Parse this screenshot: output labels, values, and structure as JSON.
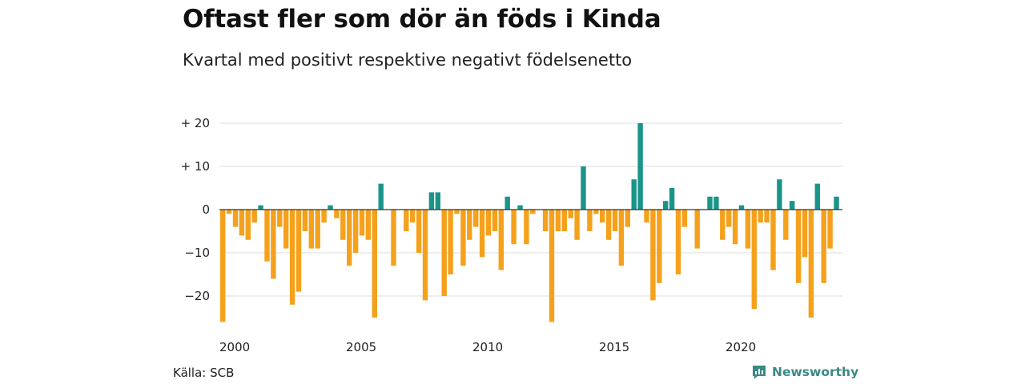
{
  "header": {
    "title": "Oftast fler som dör än föds i Kinda",
    "subtitle": "Kvartal med positivt respektive negativt födelsenetto"
  },
  "footer": {
    "source": "Källa: SCB",
    "brand": "Newsworthy",
    "brand_icon": "newsworthy-logo-icon"
  },
  "colors": {
    "positive": "#1a9589",
    "negative": "#f5a11c",
    "grid": "#dddddd",
    "axis": "#333333"
  },
  "chart_data": {
    "type": "bar",
    "title": "Oftast fler som dör än föds i Kinda",
    "subtitle": "Kvartal med positivt respektive negativt födelsenetto",
    "xlabel": "",
    "ylabel": "",
    "x_start": "2000 Q1",
    "x_tick_labels": [
      "2000",
      "2005",
      "2010",
      "2015",
      "2020"
    ],
    "y_tick_labels": [
      "+ 20",
      "+ 10",
      "0",
      "−10",
      "−20"
    ],
    "y_tick_values": [
      20,
      10,
      0,
      -10,
      -20
    ],
    "ylim": [
      -26,
      20
    ],
    "grid": true,
    "values": [
      -26,
      -1,
      -4,
      -6,
      -7,
      -3,
      1,
      -12,
      -16,
      -4,
      -9,
      -22,
      -19,
      -5,
      -9,
      -9,
      -3,
      1,
      -2,
      -7,
      -13,
      -10,
      -6,
      -7,
      -25,
      6,
      0,
      -13,
      0,
      -5,
      -3,
      -10,
      -21,
      4,
      4,
      -20,
      -15,
      -1,
      -13,
      -7,
      -4,
      -11,
      -6,
      -5,
      -14,
      3,
      -8,
      1,
      -8,
      -1,
      0,
      -5,
      -26,
      -5,
      -5,
      -2,
      -7,
      10,
      -5,
      -1,
      -3,
      -7,
      -5,
      -13,
      -4,
      7,
      20,
      -3,
      -21,
      -17,
      2,
      5,
      -15,
      -4,
      0,
      -9,
      0,
      3,
      3,
      -7,
      -4,
      -8,
      1,
      -9,
      -23,
      -3,
      -3,
      -14,
      7,
      -7,
      2,
      -17,
      -11,
      -25,
      6,
      -17,
      -9,
      3
    ]
  }
}
